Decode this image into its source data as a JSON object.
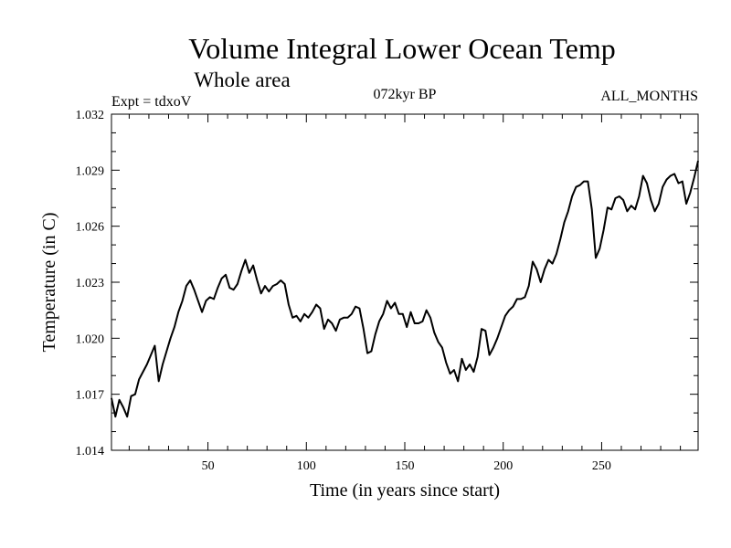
{
  "chart_data": {
    "type": "line",
    "title": "Volume Integral Lower Ocean Temp",
    "subtitle": "Whole area",
    "left_label": "Expt = tdxoV",
    "center_label": "072kyr BP",
    "right_label": "ALL_MONTHS",
    "xlabel": "Time (in years since start)",
    "ylabel": "Temperature (in C)",
    "xlim": [
      1,
      299
    ],
    "ylim": [
      1.014,
      1.032
    ],
    "x_ticks": [
      50,
      100,
      150,
      200,
      250
    ],
    "x_tick_labels": [
      "50",
      "100",
      "150",
      "200",
      "250"
    ],
    "y_ticks": [
      1.014,
      1.017,
      1.02,
      1.023,
      1.026,
      1.029,
      1.032
    ],
    "y_tick_labels": [
      "1.014",
      "1.017",
      "1.020",
      "1.023",
      "1.026",
      "1.029",
      "1.032"
    ],
    "grid": false,
    "line_color": "#000000",
    "series": [
      {
        "x": [
          1,
          3,
          5,
          7,
          9,
          11,
          13,
          15,
          17,
          19,
          21,
          23,
          25,
          27,
          29,
          31,
          33,
          35,
          37,
          39,
          41,
          43,
          45,
          47,
          49,
          51,
          53,
          55,
          57,
          59,
          61,
          63,
          65,
          67,
          69,
          71,
          73,
          75,
          77,
          79,
          81,
          83,
          85,
          87,
          89,
          91,
          93,
          95,
          97,
          99,
          101,
          103,
          105,
          107,
          109,
          111,
          113,
          115,
          117,
          119,
          121,
          123,
          125,
          127,
          129,
          131,
          133,
          135,
          137,
          139,
          141,
          143,
          145,
          147,
          149,
          151,
          153,
          155,
          157,
          159,
          161,
          163,
          165,
          167,
          169,
          171,
          173,
          175,
          177,
          179,
          181,
          183,
          185,
          187,
          189,
          191,
          193,
          195,
          197,
          199,
          201,
          203,
          205,
          207,
          209,
          211,
          213,
          215,
          217,
          219,
          221,
          223,
          225,
          227,
          229,
          231,
          233,
          235,
          237,
          239,
          241,
          243,
          245,
          247,
          249,
          251,
          253,
          255,
          257,
          259,
          261,
          263,
          265,
          267,
          269,
          271,
          273,
          275,
          277,
          279,
          281,
          283,
          285,
          287,
          289,
          291,
          293,
          295,
          297,
          299
        ],
        "values": [
          1.0168,
          1.0158,
          1.0167,
          1.0163,
          1.0158,
          1.0169,
          1.017,
          1.0178,
          1.0182,
          1.0186,
          1.0191,
          1.0196,
          1.0177,
          1.0186,
          1.0193,
          1.02,
          1.0206,
          1.0214,
          1.022,
          1.0228,
          1.0231,
          1.0226,
          1.022,
          1.0214,
          1.022,
          1.0222,
          1.0221,
          1.0227,
          1.0232,
          1.0234,
          1.0227,
          1.0226,
          1.0229,
          1.0236,
          1.0242,
          1.0235,
          1.0239,
          1.0231,
          1.0224,
          1.0228,
          1.0225,
          1.0228,
          1.0229,
          1.0231,
          1.0229,
          1.0218,
          1.0211,
          1.0212,
          1.0209,
          1.0213,
          1.0211,
          1.0214,
          1.0218,
          1.0216,
          1.0205,
          1.021,
          1.0208,
          1.0204,
          1.021,
          1.0211,
          1.0211,
          1.0213,
          1.0217,
          1.0216,
          1.0205,
          1.0192,
          1.0193,
          1.0202,
          1.0209,
          1.0213,
          1.022,
          1.0216,
          1.0219,
          1.0213,
          1.0213,
          1.0206,
          1.0214,
          1.0208,
          1.0208,
          1.0209,
          1.0215,
          1.0211,
          1.0203,
          1.0198,
          1.0195,
          1.0187,
          1.0181,
          1.0183,
          1.0177,
          1.0189,
          1.0183,
          1.0186,
          1.0182,
          1.019,
          1.0205,
          1.0204,
          1.0191,
          1.0195,
          1.02,
          1.0206,
          1.0212,
          1.0215,
          1.0217,
          1.0221,
          1.0221,
          1.0222,
          1.0228,
          1.0241,
          1.0237,
          1.023,
          1.0237,
          1.0242,
          1.024,
          1.0245,
          1.0253,
          1.0262,
          1.0268,
          1.0276,
          1.0281,
          1.0282,
          1.0284,
          1.0284,
          1.0269,
          1.0243,
          1.0248,
          1.0258,
          1.027,
          1.0269,
          1.0275,
          1.0276,
          1.0274,
          1.0268,
          1.0271,
          1.0269,
          1.0276,
          1.0287,
          1.0283,
          1.0274,
          1.0268,
          1.0272,
          1.0281,
          1.0285,
          1.0287,
          1.0288,
          1.0283,
          1.0284,
          1.0272,
          1.0278,
          1.0286,
          1.0295
        ]
      }
    ]
  }
}
